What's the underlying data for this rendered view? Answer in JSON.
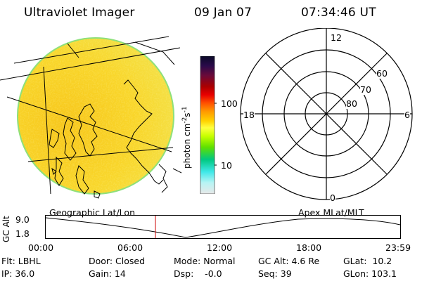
{
  "header": {
    "instrument": "Ultraviolet Imager",
    "date": "09 Jan 07",
    "time": "07:34:46 UT"
  },
  "colorbar": {
    "unit_label": "photon cm",
    "unit_exp1": "-2",
    "unit_mid": "s",
    "unit_exp2": "-1",
    "ticks": [
      "100",
      "10"
    ],
    "colors": [
      "#0a0a28",
      "#2a0a4a",
      "#6a0a3a",
      "#aa0000",
      "#e80000",
      "#ff5000",
      "#ff9800",
      "#ffd200",
      "#ffff40",
      "#c8ff00",
      "#60e000",
      "#00c880",
      "#40e8e8",
      "#b8f4f4",
      "#e8e8e8"
    ]
  },
  "polar_plot": {
    "mlt_labels": {
      "top": "12",
      "left": "18",
      "right": "6",
      "bottom": "0"
    },
    "lat_labels": [
      "60",
      "70",
      "80"
    ]
  },
  "timeline": {
    "left_label": "Geographic Lat/Lon",
    "right_label": "Apex MLat/MLT",
    "y_axis_label": "GC Alt",
    "y_ticks": [
      "9.0",
      "1.8"
    ],
    "x_ticks": [
      "00:00",
      "06:00",
      "12:00",
      "18:00",
      "23:59"
    ],
    "marker_color": "#cc0000"
  },
  "status": {
    "flt": "Flt: LBHL",
    "ip": "IP: 36.0",
    "door": "Door: Closed",
    "gain": "Gain: 14",
    "mode": "Mode: Normal",
    "dsp": "Dsp:    -0.0",
    "gc_alt": "GC Alt: 4.6 Re",
    "seq": "Seq: 39",
    "glat": "GLat:  10.2",
    "glon": "GLon: 103.1"
  }
}
